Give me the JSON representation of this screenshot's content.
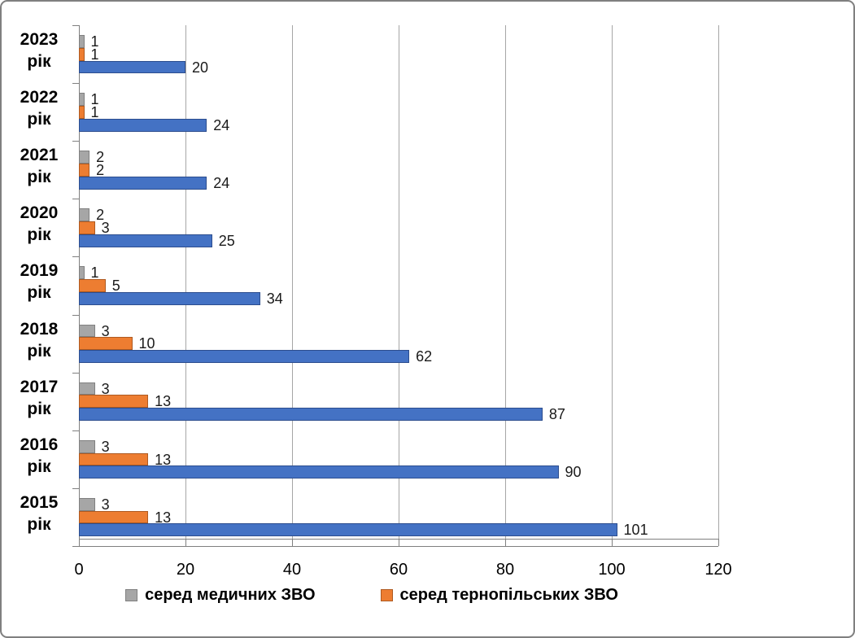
{
  "frame": {
    "background": "#ffffff",
    "border_color": "#7f7f7f"
  },
  "chart_data": {
    "type": "bar",
    "orientation": "horizontal",
    "title": "",
    "xlabel": "",
    "ylabel": "",
    "categories": [
      "2023 рік",
      "2022 рік",
      "2021 рік",
      "2020 рік",
      "2019 рік",
      "2018 рік",
      "2017 рік",
      "2016 рік",
      "2015 рік"
    ],
    "series": [
      {
        "name": "серед медичних ЗВО",
        "color": "#a6a6a6",
        "border_color": "#808080",
        "in_legend": true,
        "values": [
          1,
          1,
          2,
          2,
          1,
          3,
          3,
          3,
          3
        ]
      },
      {
        "name": "серед тернопільських ЗВО",
        "color": "#ed7d31",
        "border_color": "#ae5a21",
        "in_legend": true,
        "values": [
          1,
          1,
          2,
          3,
          5,
          10,
          13,
          13,
          13
        ]
      },
      {
        "name": "",
        "color": "#4472c4",
        "border_color": "#2c4d8e",
        "in_legend": false,
        "values": [
          20,
          24,
          24,
          25,
          34,
          62,
          87,
          90,
          101
        ]
      }
    ],
    "xlim": [
      0,
      120
    ],
    "xticks": [
      0,
      20,
      40,
      60,
      80,
      100,
      120
    ],
    "grid": {
      "vertical": true,
      "color": "#a6a6a6"
    },
    "axis_color": "#808080",
    "data_labels": true,
    "legend_position": "bottom-center",
    "legend_entries": [
      "серед медичних ЗВО",
      "серед тернопільських ЗВО"
    ]
  }
}
